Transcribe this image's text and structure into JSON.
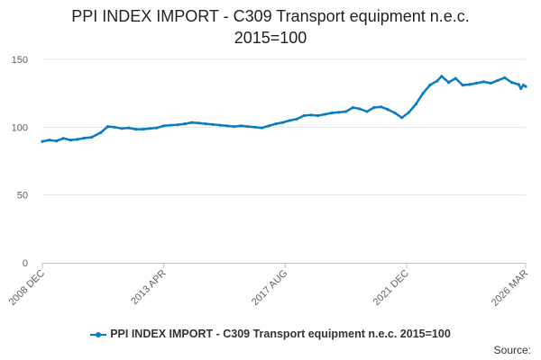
{
  "chart_data": {
    "type": "line",
    "title_lines": [
      "PPI INDEX IMPORT - C309 Transport equipment n.e.c.",
      "2015=100"
    ],
    "xlabel": "",
    "ylabel": "",
    "ylim": [
      0,
      150
    ],
    "y_ticks": [
      0,
      50,
      100,
      150
    ],
    "x_start": "2008-12",
    "x_end": "2026-03",
    "x_ticks": [
      {
        "date": "2008-12",
        "label": "2008 DEC"
      },
      {
        "date": "2013-04",
        "label": "2013 APR"
      },
      {
        "date": "2017-08",
        "label": "2017 AUG"
      },
      {
        "date": "2021-12",
        "label": "2021 DEC"
      },
      {
        "date": "2026-03",
        "label": "2026 MAR"
      }
    ],
    "grid": true,
    "legend_position": "bottom",
    "color": "#0a7cbf",
    "series": [
      {
        "name": "PPI INDEX IMPORT - C309 Transport equipment n.e.c. 2015=100",
        "points": [
          [
            "2008-12",
            89.5
          ],
          [
            "2009-03",
            90.5
          ],
          [
            "2009-06",
            89.8
          ],
          [
            "2009-09",
            91.8
          ],
          [
            "2009-12",
            90.5
          ],
          [
            "2010-03",
            91.0
          ],
          [
            "2010-06",
            92.0
          ],
          [
            "2010-09",
            92.5
          ],
          [
            "2011-01",
            96.0
          ],
          [
            "2011-04",
            100.5
          ],
          [
            "2011-07",
            100.0
          ],
          [
            "2011-10",
            99.0
          ],
          [
            "2012-01",
            99.5
          ],
          [
            "2012-04",
            98.5
          ],
          [
            "2012-07",
            98.5
          ],
          [
            "2012-10",
            99.0
          ],
          [
            "2013-01",
            99.5
          ],
          [
            "2013-04",
            101.0
          ],
          [
            "2013-07",
            101.5
          ],
          [
            "2013-10",
            101.8
          ],
          [
            "2014-01",
            102.5
          ],
          [
            "2014-04",
            103.5
          ],
          [
            "2014-07",
            103.0
          ],
          [
            "2014-10",
            102.5
          ],
          [
            "2015-01",
            102.0
          ],
          [
            "2015-04",
            101.5
          ],
          [
            "2015-07",
            101.0
          ],
          [
            "2015-10",
            100.5
          ],
          [
            "2016-01",
            101.0
          ],
          [
            "2016-04",
            100.5
          ],
          [
            "2016-07",
            100.0
          ],
          [
            "2016-10",
            99.5
          ],
          [
            "2017-01",
            101.0
          ],
          [
            "2017-04",
            102.5
          ],
          [
            "2017-07",
            103.5
          ],
          [
            "2017-10",
            105.0
          ],
          [
            "2018-01",
            106.0
          ],
          [
            "2018-04",
            108.5
          ],
          [
            "2018-07",
            109.0
          ],
          [
            "2018-10",
            108.5
          ],
          [
            "2019-01",
            109.5
          ],
          [
            "2019-04",
            110.5
          ],
          [
            "2019-07",
            111.0
          ],
          [
            "2019-10",
            111.5
          ],
          [
            "2020-01",
            114.5
          ],
          [
            "2020-04",
            113.5
          ],
          [
            "2020-07",
            111.5
          ],
          [
            "2020-10",
            114.5
          ],
          [
            "2021-01",
            115.0
          ],
          [
            "2021-04",
            113.0
          ],
          [
            "2021-07",
            110.5
          ],
          [
            "2021-10",
            107.0
          ],
          [
            "2022-01",
            111.0
          ],
          [
            "2022-04",
            117.0
          ],
          [
            "2022-07",
            125.0
          ],
          [
            "2022-10",
            131.0
          ],
          [
            "2023-01",
            134.0
          ],
          [
            "2023-03",
            137.5
          ],
          [
            "2023-06",
            133.0
          ],
          [
            "2023-09",
            136.0
          ],
          [
            "2023-12",
            131.0
          ],
          [
            "2024-03",
            131.5
          ],
          [
            "2024-06",
            132.5
          ],
          [
            "2024-09",
            133.5
          ],
          [
            "2024-12",
            132.5
          ],
          [
            "2025-03",
            134.5
          ],
          [
            "2025-06",
            136.5
          ],
          [
            "2025-09",
            133.0
          ],
          [
            "2025-12",
            131.5
          ],
          [
            "2026-01",
            128.5
          ],
          [
            "2026-02",
            131.0
          ],
          [
            "2026-03",
            130.0
          ]
        ]
      }
    ]
  },
  "legend": {
    "label": "PPI INDEX IMPORT - C309 Transport equipment n.e.c. 2015=100"
  },
  "source_label": "Source:"
}
